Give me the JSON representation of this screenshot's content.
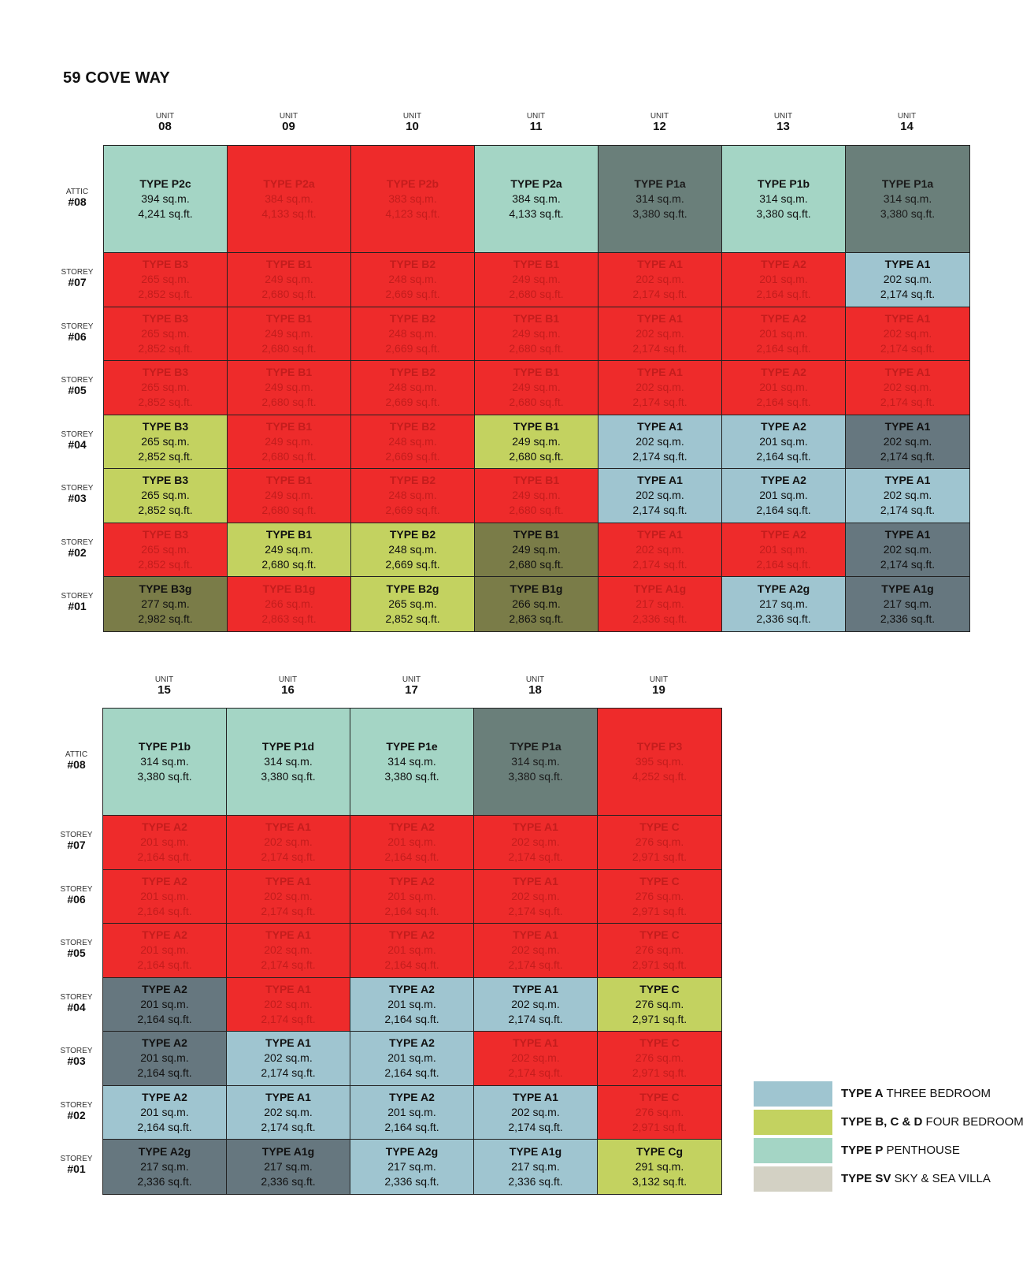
{
  "title": "59 COVE WAY",
  "labels": {
    "unit": "UNIT",
    "attic": "ATTIC",
    "storey": "STOREY"
  },
  "colors": {
    "A": "#9fc5d0",
    "B": "#c3d260",
    "P": "#a4d5c5",
    "SV": "#d3d1c4",
    "sold": "#ee2b2b",
    "dark": "#6a7f7a",
    "slate": "#66777f",
    "olive": "#7a7c48"
  },
  "tables": [
    {
      "units": [
        "08",
        "09",
        "10",
        "11",
        "12",
        "13",
        "14"
      ],
      "rows": [
        {
          "label": "ATTIC",
          "num": "#08",
          "cells": [
            {
              "type": "TYPE P2c",
              "sqm": "394 sq.m.",
              "sqft": "4,241 sq.ft.",
              "s": "P"
            },
            {
              "type": "TYPE P2a",
              "sqm": "384 sq.m.",
              "sqft": "4,133 sq.ft.",
              "s": "sold"
            },
            {
              "type": "TYPE P2b",
              "sqm": "383 sq.m.",
              "sqft": "4,123 sq.ft.",
              "s": "sold"
            },
            {
              "type": "TYPE P2a",
              "sqm": "384 sq.m.",
              "sqft": "4,133 sq.ft.",
              "s": "P"
            },
            {
              "type": "TYPE P1a",
              "sqm": "314 sq.m.",
              "sqft": "3,380 sq.ft.",
              "s": "dark"
            },
            {
              "type": "TYPE P1b",
              "sqm": "314 sq.m.",
              "sqft": "3,380 sq.ft.",
              "s": "P"
            },
            {
              "type": "TYPE P1a",
              "sqm": "314 sq.m.",
              "sqft": "3,380 sq.ft.",
              "s": "dark"
            }
          ]
        },
        {
          "label": "STOREY",
          "num": "#07",
          "cells": [
            {
              "type": "TYPE B3",
              "sqm": "265 sq.m.",
              "sqft": "2,852 sq.ft.",
              "s": "sold"
            },
            {
              "type": "TYPE B1",
              "sqm": "249 sq.m.",
              "sqft": "2,680 sq.ft.",
              "s": "sold"
            },
            {
              "type": "TYPE B2",
              "sqm": "248 sq.m.",
              "sqft": "2,669 sq.ft.",
              "s": "sold"
            },
            {
              "type": "TYPE B1",
              "sqm": "249 sq.m.",
              "sqft": "2,680 sq.ft.",
              "s": "sold"
            },
            {
              "type": "TYPE A1",
              "sqm": "202 sq.m.",
              "sqft": "2,174 sq.ft.",
              "s": "sold"
            },
            {
              "type": "TYPE A2",
              "sqm": "201 sq.m.",
              "sqft": "2,164 sq.ft.",
              "s": "sold"
            },
            {
              "type": "TYPE A1",
              "sqm": "202 sq.m.",
              "sqft": "2,174 sq.ft.",
              "s": "A"
            }
          ]
        },
        {
          "label": "STOREY",
          "num": "#06",
          "cells": [
            {
              "type": "TYPE B3",
              "sqm": "265 sq.m.",
              "sqft": "2,852 sq.ft.",
              "s": "sold"
            },
            {
              "type": "TYPE B1",
              "sqm": "249 sq.m.",
              "sqft": "2,680 sq.ft.",
              "s": "sold"
            },
            {
              "type": "TYPE B2",
              "sqm": "248 sq.m.",
              "sqft": "2,669 sq.ft.",
              "s": "sold"
            },
            {
              "type": "TYPE B1",
              "sqm": "249 sq.m.",
              "sqft": "2,680 sq.ft.",
              "s": "sold"
            },
            {
              "type": "TYPE A1",
              "sqm": "202 sq.m.",
              "sqft": "2,174 sq.ft.",
              "s": "sold"
            },
            {
              "type": "TYPE A2",
              "sqm": "201 sq.m.",
              "sqft": "2,164 sq.ft.",
              "s": "sold"
            },
            {
              "type": "TYPE A1",
              "sqm": "202 sq.m.",
              "sqft": "2,174 sq.ft.",
              "s": "sold"
            }
          ]
        },
        {
          "label": "STOREY",
          "num": "#05",
          "cells": [
            {
              "type": "TYPE B3",
              "sqm": "265 sq.m.",
              "sqft": "2,852 sq.ft.",
              "s": "sold"
            },
            {
              "type": "TYPE B1",
              "sqm": "249 sq.m.",
              "sqft": "2,680 sq.ft.",
              "s": "sold"
            },
            {
              "type": "TYPE B2",
              "sqm": "248 sq.m.",
              "sqft": "2,669 sq.ft.",
              "s": "sold"
            },
            {
              "type": "TYPE B1",
              "sqm": "249 sq.m.",
              "sqft": "2,680 sq.ft.",
              "s": "sold"
            },
            {
              "type": "TYPE A1",
              "sqm": "202 sq.m.",
              "sqft": "2,174 sq.ft.",
              "s": "sold"
            },
            {
              "type": "TYPE A2",
              "sqm": "201 sq.m.",
              "sqft": "2,164 sq.ft.",
              "s": "sold"
            },
            {
              "type": "TYPE A1",
              "sqm": "202 sq.m.",
              "sqft": "2,174 sq.ft.",
              "s": "sold"
            }
          ]
        },
        {
          "label": "STOREY",
          "num": "#04",
          "cells": [
            {
              "type": "TYPE B3",
              "sqm": "265 sq.m.",
              "sqft": "2,852 sq.ft.",
              "s": "B"
            },
            {
              "type": "TYPE B1",
              "sqm": "249 sq.m.",
              "sqft": "2,680 sq.ft.",
              "s": "sold"
            },
            {
              "type": "TYPE B2",
              "sqm": "248 sq.m.",
              "sqft": "2,669 sq.ft.",
              "s": "sold"
            },
            {
              "type": "TYPE B1",
              "sqm": "249 sq.m.",
              "sqft": "2,680 sq.ft.",
              "s": "B"
            },
            {
              "type": "TYPE A1",
              "sqm": "202 sq.m.",
              "sqft": "2,174 sq.ft.",
              "s": "A"
            },
            {
              "type": "TYPE A2",
              "sqm": "201 sq.m.",
              "sqft": "2,164 sq.ft.",
              "s": "A"
            },
            {
              "type": "TYPE A1",
              "sqm": "202 sq.m.",
              "sqft": "2,174 sq.ft.",
              "s": "slate"
            }
          ]
        },
        {
          "label": "STOREY",
          "num": "#03",
          "cells": [
            {
              "type": "TYPE B3",
              "sqm": "265 sq.m.",
              "sqft": "2,852 sq.ft.",
              "s": "B"
            },
            {
              "type": "TYPE B1",
              "sqm": "249 sq.m.",
              "sqft": "2,680 sq.ft.",
              "s": "sold"
            },
            {
              "type": "TYPE B2",
              "sqm": "248 sq.m.",
              "sqft": "2,669 sq.ft.",
              "s": "sold"
            },
            {
              "type": "TYPE B1",
              "sqm": "249 sq.m.",
              "sqft": "2,680 sq.ft.",
              "s": "sold"
            },
            {
              "type": "TYPE A1",
              "sqm": "202 sq.m.",
              "sqft": "2,174 sq.ft.",
              "s": "A"
            },
            {
              "type": "TYPE A2",
              "sqm": "201 sq.m.",
              "sqft": "2,164 sq.ft.",
              "s": "A"
            },
            {
              "type": "TYPE A1",
              "sqm": "202 sq.m.",
              "sqft": "2,174 sq.ft.",
              "s": "A"
            }
          ]
        },
        {
          "label": "STOREY",
          "num": "#02",
          "cells": [
            {
              "type": "TYPE B3",
              "sqm": "265 sq.m.",
              "sqft": "2,852 sq.ft.",
              "s": "sold"
            },
            {
              "type": "TYPE B1",
              "sqm": "249 sq.m.",
              "sqft": "2,680 sq.ft.",
              "s": "B"
            },
            {
              "type": "TYPE B2",
              "sqm": "248 sq.m.",
              "sqft": "2,669 sq.ft.",
              "s": "B"
            },
            {
              "type": "TYPE B1",
              "sqm": "249 sq.m.",
              "sqft": "2,680 sq.ft.",
              "s": "olive"
            },
            {
              "type": "TYPE A1",
              "sqm": "202 sq.m.",
              "sqft": "2,174 sq.ft.",
              "s": "sold"
            },
            {
              "type": "TYPE A2",
              "sqm": "201 sq.m.",
              "sqft": "2,164 sq.ft.",
              "s": "sold"
            },
            {
              "type": "TYPE A1",
              "sqm": "202 sq.m.",
              "sqft": "2,174 sq.ft.",
              "s": "slate"
            }
          ]
        },
        {
          "label": "STOREY",
          "num": "#01",
          "cells": [
            {
              "type": "TYPE B3g",
              "sqm": "277 sq.m.",
              "sqft": "2,982 sq.ft.",
              "s": "olive"
            },
            {
              "type": "TYPE B1g",
              "sqm": "266 sq.m.",
              "sqft": "2,863 sq.ft.",
              "s": "sold"
            },
            {
              "type": "TYPE B2g",
              "sqm": "265 sq.m.",
              "sqft": "2,852 sq.ft.",
              "s": "B"
            },
            {
              "type": "TYPE B1g",
              "sqm": "266 sq.m.",
              "sqft": "2,863 sq.ft.",
              "s": "olive"
            },
            {
              "type": "TYPE A1g",
              "sqm": "217 sq.m.",
              "sqft": "2,336 sq.ft.",
              "s": "sold"
            },
            {
              "type": "TYPE A2g",
              "sqm": "217 sq.m.",
              "sqft": "2,336 sq.ft.",
              "s": "A"
            },
            {
              "type": "TYPE A1g",
              "sqm": "217 sq.m.",
              "sqft": "2,336 sq.ft.",
              "s": "slate"
            }
          ]
        }
      ]
    },
    {
      "units": [
        "15",
        "16",
        "17",
        "18",
        "19"
      ],
      "rows": [
        {
          "label": "ATTIC",
          "num": "#08",
          "cells": [
            {
              "type": "TYPE P1b",
              "sqm": "314 sq.m.",
              "sqft": "3,380 sq.ft.",
              "s": "P"
            },
            {
              "type": "TYPE P1d",
              "sqm": "314 sq.m.",
              "sqft": "3,380 sq.ft.",
              "s": "P"
            },
            {
              "type": "TYPE P1e",
              "sqm": "314 sq.m.",
              "sqft": "3,380 sq.ft.",
              "s": "P"
            },
            {
              "type": "TYPE P1a",
              "sqm": "314 sq.m.",
              "sqft": "3,380 sq.ft.",
              "s": "dark"
            },
            {
              "type": "TYPE P3",
              "sqm": "395 sq.m.",
              "sqft": "4,252 sq.ft.",
              "s": "sold"
            }
          ]
        },
        {
          "label": "STOREY",
          "num": "#07",
          "cells": [
            {
              "type": "TYPE A2",
              "sqm": "201 sq.m.",
              "sqft": "2,164 sq.ft.",
              "s": "sold"
            },
            {
              "type": "TYPE A1",
              "sqm": "202 sq.m.",
              "sqft": "2,174 sq.ft.",
              "s": "sold"
            },
            {
              "type": "TYPE A2",
              "sqm": "201 sq.m.",
              "sqft": "2,164 sq.ft.",
              "s": "sold"
            },
            {
              "type": "TYPE A1",
              "sqm": "202 sq.m.",
              "sqft": "2,174 sq.ft.",
              "s": "sold"
            },
            {
              "type": "TYPE C",
              "sqm": "276 sq.m.",
              "sqft": "2,971 sq.ft.",
              "s": "sold"
            }
          ]
        },
        {
          "label": "STOREY",
          "num": "#06",
          "cells": [
            {
              "type": "TYPE A2",
              "sqm": "201 sq.m.",
              "sqft": "2,164 sq.ft.",
              "s": "sold"
            },
            {
              "type": "TYPE A1",
              "sqm": "202 sq.m.",
              "sqft": "2,174 sq.ft.",
              "s": "sold"
            },
            {
              "type": "TYPE A2",
              "sqm": "201 sq.m.",
              "sqft": "2,164 sq.ft.",
              "s": "sold"
            },
            {
              "type": "TYPE A1",
              "sqm": "202 sq.m.",
              "sqft": "2,174 sq.ft.",
              "s": "sold"
            },
            {
              "type": "TYPE C",
              "sqm": "276 sq.m.",
              "sqft": "2,971 sq.ft.",
              "s": "sold"
            }
          ]
        },
        {
          "label": "STOREY",
          "num": "#05",
          "cells": [
            {
              "type": "TYPE A2",
              "sqm": "201 sq.m.",
              "sqft": "2,164 sq.ft.",
              "s": "sold"
            },
            {
              "type": "TYPE A1",
              "sqm": "202 sq.m.",
              "sqft": "2,174 sq.ft.",
              "s": "sold"
            },
            {
              "type": "TYPE A2",
              "sqm": "201 sq.m.",
              "sqft": "2,164 sq.ft.",
              "s": "sold"
            },
            {
              "type": "TYPE A1",
              "sqm": "202 sq.m.",
              "sqft": "2,174 sq.ft.",
              "s": "sold"
            },
            {
              "type": "TYPE C",
              "sqm": "276 sq.m.",
              "sqft": "2,971 sq.ft.",
              "s": "sold"
            }
          ]
        },
        {
          "label": "STOREY",
          "num": "#04",
          "cells": [
            {
              "type": "TYPE A2",
              "sqm": "201 sq.m.",
              "sqft": "2,164 sq.ft.",
              "s": "slate"
            },
            {
              "type": "TYPE A1",
              "sqm": "202 sq.m.",
              "sqft": "2,174 sq.ft.",
              "s": "sold"
            },
            {
              "type": "TYPE A2",
              "sqm": "201 sq.m.",
              "sqft": "2,164 sq.ft.",
              "s": "A"
            },
            {
              "type": "TYPE A1",
              "sqm": "202 sq.m.",
              "sqft": "2,174 sq.ft.",
              "s": "A"
            },
            {
              "type": "TYPE C",
              "sqm": "276 sq.m.",
              "sqft": "2,971 sq.ft.",
              "s": "B"
            }
          ]
        },
        {
          "label": "STOREY",
          "num": "#03",
          "cells": [
            {
              "type": "TYPE A2",
              "sqm": "201 sq.m.",
              "sqft": "2,164 sq.ft.",
              "s": "slate"
            },
            {
              "type": "TYPE A1",
              "sqm": "202 sq.m.",
              "sqft": "2,174 sq.ft.",
              "s": "A"
            },
            {
              "type": "TYPE A2",
              "sqm": "201 sq.m.",
              "sqft": "2,164 sq.ft.",
              "s": "A"
            },
            {
              "type": "TYPE A1",
              "sqm": "202 sq.m.",
              "sqft": "2,174 sq.ft.",
              "s": "sold"
            },
            {
              "type": "TYPE C",
              "sqm": "276 sq.m.",
              "sqft": "2,971 sq.ft.",
              "s": "sold"
            }
          ]
        },
        {
          "label": "STOREY",
          "num": "#02",
          "cells": [
            {
              "type": "TYPE A2",
              "sqm": "201 sq.m.",
              "sqft": "2,164 sq.ft.",
              "s": "A"
            },
            {
              "type": "TYPE A1",
              "sqm": "202 sq.m.",
              "sqft": "2,174 sq.ft.",
              "s": "A"
            },
            {
              "type": "TYPE A2",
              "sqm": "201 sq.m.",
              "sqft": "2,164 sq.ft.",
              "s": "A"
            },
            {
              "type": "TYPE A1",
              "sqm": "202 sq.m.",
              "sqft": "2,174 sq.ft.",
              "s": "A"
            },
            {
              "type": "TYPE C",
              "sqm": "276 sq.m.",
              "sqft": "2,971 sq.ft.",
              "s": "sold"
            }
          ]
        },
        {
          "label": "STOREY",
          "num": "#01",
          "cells": [
            {
              "type": "TYPE A2g",
              "sqm": "217 sq.m.",
              "sqft": "2,336 sq.ft.",
              "s": "slate"
            },
            {
              "type": "TYPE A1g",
              "sqm": "217 sq.m.",
              "sqft": "2,336 sq.ft.",
              "s": "slate"
            },
            {
              "type": "TYPE A2g",
              "sqm": "217 sq.m.",
              "sqft": "2,336 sq.ft.",
              "s": "A"
            },
            {
              "type": "TYPE A1g",
              "sqm": "217 sq.m.",
              "sqft": "2,336 sq.ft.",
              "s": "A"
            },
            {
              "type": "TYPE Cg",
              "sqm": "291 sq.m.",
              "sqft": "3,132 sq.ft.",
              "s": "B"
            }
          ]
        }
      ]
    }
  ],
  "legend": [
    {
      "bold": "TYPE A",
      "text": " THREE BEDROOM",
      "s": "A"
    },
    {
      "bold": "TYPE B, C & D",
      "text": " FOUR BEDROOM",
      "s": "B"
    },
    {
      "bold": "TYPE P",
      "text": " PENTHOUSE",
      "s": "P"
    },
    {
      "bold": "TYPE SV",
      "text": " SKY & SEA VILLA",
      "s": "SV"
    }
  ]
}
